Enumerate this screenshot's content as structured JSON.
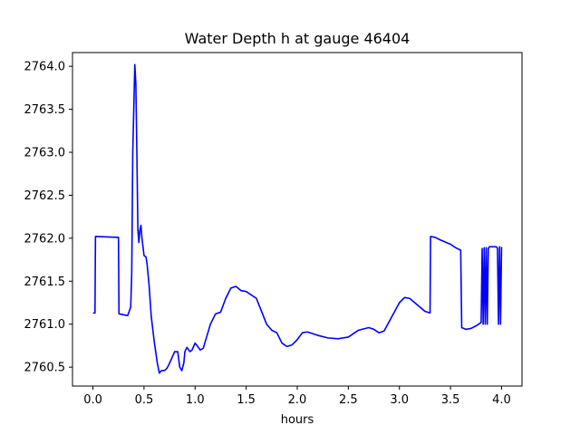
{
  "chart_data": {
    "type": "line",
    "title": "Water Depth h at gauge 46404",
    "xlabel": "hours",
    "ylabel": "",
    "xlim": [
      -0.2,
      4.2
    ],
    "ylim": [
      2760.28,
      2764.16
    ],
    "xticks": [
      0.0,
      0.5,
      1.0,
      1.5,
      2.0,
      2.5,
      3.0,
      3.5,
      4.0
    ],
    "xtick_labels": [
      "0.0",
      "0.5",
      "1.0",
      "1.5",
      "2.0",
      "2.5",
      "3.0",
      "3.5",
      "4.0"
    ],
    "yticks": [
      2760.5,
      2761.0,
      2761.5,
      2762.0,
      2762.5,
      2763.0,
      2763.5,
      2764.0
    ],
    "ytick_labels": [
      "2760.5",
      "2761.0",
      "2761.5",
      "2762.0",
      "2762.5",
      "2763.0",
      "2763.5",
      "2764.0"
    ],
    "grid": false,
    "series": [
      {
        "color": "#0000ff",
        "x": [
          0.0,
          0.02,
          0.025,
          0.25,
          0.255,
          0.3,
          0.34,
          0.37,
          0.38,
          0.39,
          0.41,
          0.42,
          0.43,
          0.44,
          0.45,
          0.46,
          0.47,
          0.48,
          0.5,
          0.52,
          0.53,
          0.55,
          0.57,
          0.6,
          0.63,
          0.65,
          0.67,
          0.7,
          0.72,
          0.74,
          0.77,
          0.8,
          0.83,
          0.85,
          0.87,
          0.89,
          0.9,
          0.92,
          0.95,
          0.97,
          1.0,
          1.02,
          1.05,
          1.08,
          1.1,
          1.13,
          1.15,
          1.2,
          1.25,
          1.3,
          1.35,
          1.4,
          1.45,
          1.5,
          1.6,
          1.65,
          1.7,
          1.75,
          1.8,
          1.85,
          1.9,
          1.95,
          2.0,
          2.05,
          2.1,
          2.2,
          2.3,
          2.4,
          2.5,
          2.6,
          2.7,
          2.75,
          2.8,
          2.85,
          2.9,
          3.0,
          3.05,
          3.1,
          3.15,
          3.2,
          3.25,
          3.3,
          3.305,
          3.35,
          3.4,
          3.5,
          3.55,
          3.6,
          3.61,
          3.65,
          3.7,
          3.75,
          3.8,
          3.81,
          3.82,
          3.83,
          3.84,
          3.85,
          3.86,
          3.87,
          3.88,
          3.9,
          3.95,
          3.96,
          3.97,
          3.98,
          3.99,
          4.0
        ],
        "y": [
          2761.13,
          2761.13,
          2762.02,
          2762.01,
          2761.12,
          2761.11,
          2761.1,
          2761.2,
          2761.6,
          2763.0,
          2764.02,
          2763.8,
          2763.0,
          2762.1,
          2761.95,
          2762.1,
          2762.15,
          2762.0,
          2761.8,
          2761.78,
          2761.7,
          2761.45,
          2761.1,
          2760.8,
          2760.55,
          2760.43,
          2760.46,
          2760.46,
          2760.48,
          2760.52,
          2760.6,
          2760.68,
          2760.68,
          2760.5,
          2760.46,
          2760.55,
          2760.68,
          2760.73,
          2760.68,
          2760.7,
          2760.78,
          2760.75,
          2760.7,
          2760.72,
          2760.8,
          2760.92,
          2761.0,
          2761.12,
          2761.14,
          2761.3,
          2761.42,
          2761.44,
          2761.39,
          2761.38,
          2761.3,
          2761.15,
          2761.0,
          2760.93,
          2760.9,
          2760.78,
          2760.74,
          2760.76,
          2760.82,
          2760.9,
          2760.91,
          2760.87,
          2760.84,
          2760.83,
          2760.85,
          2760.93,
          2760.96,
          2760.94,
          2760.9,
          2760.92,
          2761.03,
          2761.25,
          2761.31,
          2761.3,
          2761.25,
          2761.2,
          2761.15,
          2761.13,
          2762.02,
          2762.01,
          2761.98,
          2761.93,
          2761.89,
          2761.86,
          2760.96,
          2760.94,
          2760.95,
          2760.98,
          2761.02,
          2761.88,
          2761.0,
          2761.89,
          2761.0,
          2761.89,
          2761.0,
          2761.88,
          2761.9,
          2761.9,
          2761.9,
          2761.88,
          2761.0,
          2761.9,
          2761.0,
          2761.9
        ]
      }
    ]
  }
}
